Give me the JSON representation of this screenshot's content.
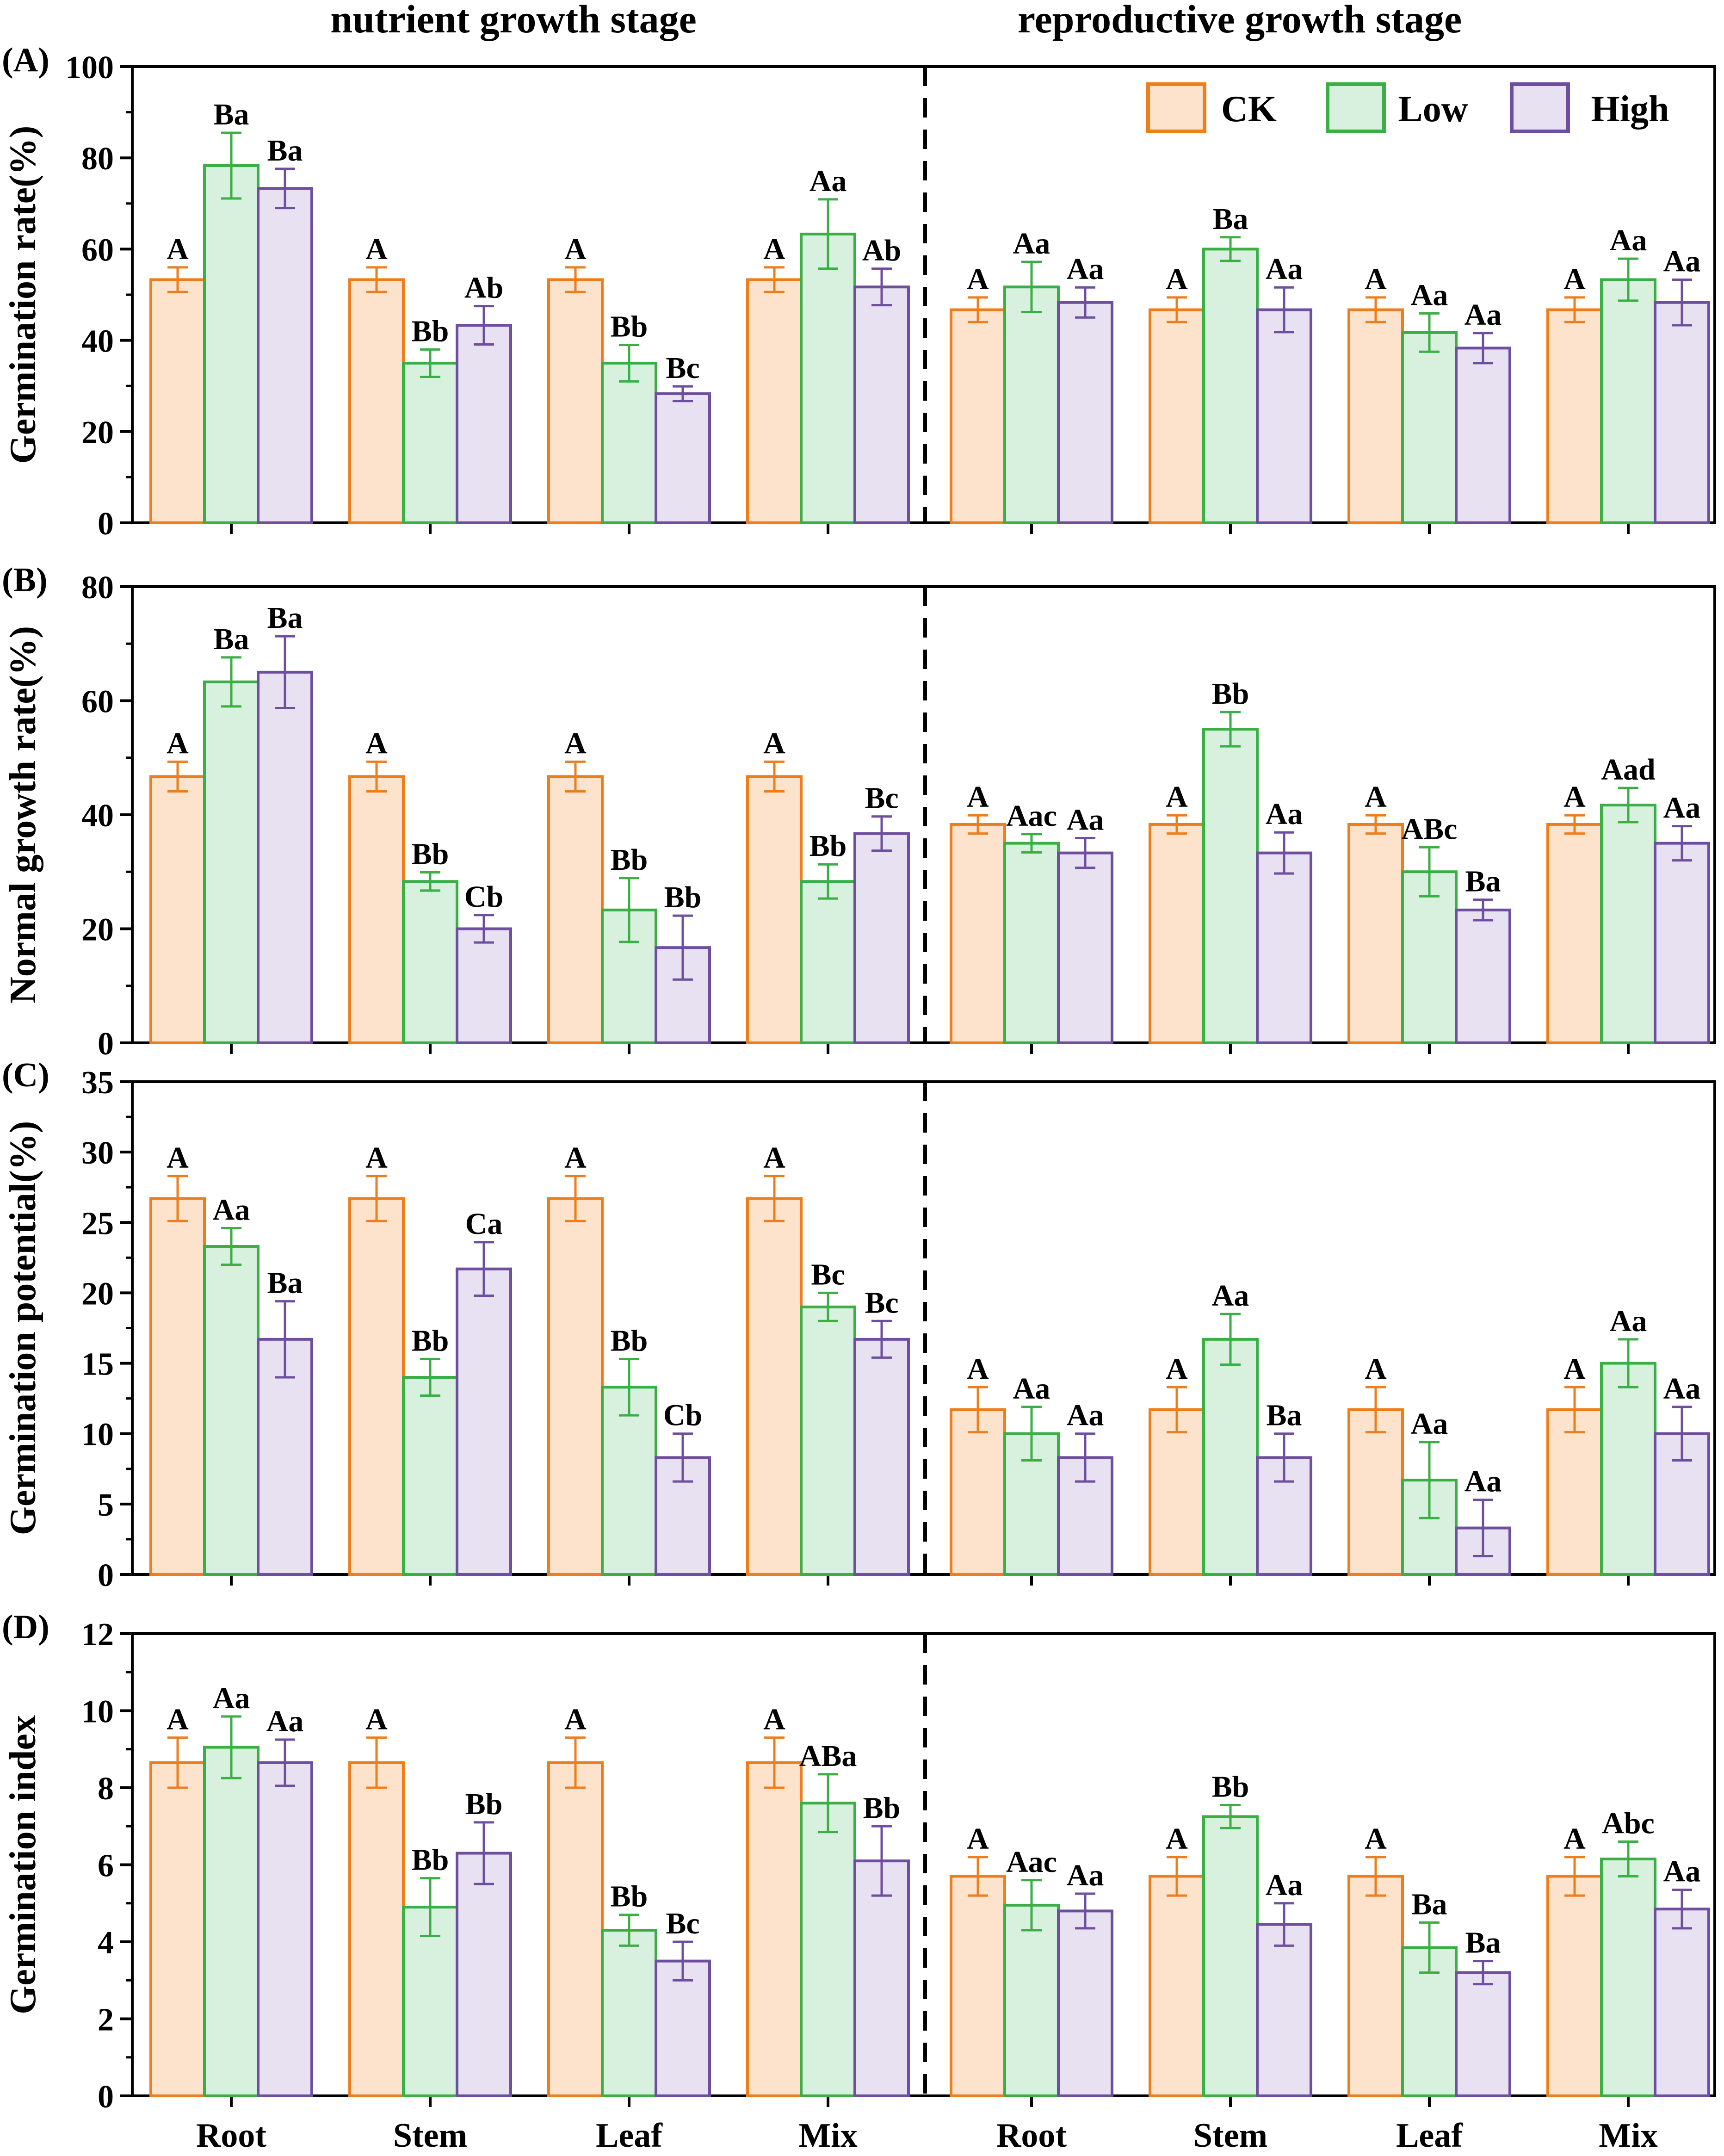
{
  "colors": {
    "ck_fill": "#fde3cc",
    "ck_stroke": "#ee7d1c",
    "low_fill": "#d8f0de",
    "low_stroke": "#3cae46",
    "high_fill": "#e7e1f2",
    "high_stroke": "#6e4e9e"
  },
  "stage_titles": {
    "left": "nutrient growth stage",
    "right": "reproductive growth stage"
  },
  "legend": [
    "CK",
    "Low",
    "High"
  ],
  "categories": [
    "Root",
    "Stem",
    "Leaf",
    "Mix",
    "Root",
    "Stem",
    "Leaf",
    "Mix"
  ],
  "chart_data": [
    {
      "type": "bar",
      "panel_label": "(A)",
      "ylabel": "Germination rate(%)",
      "ylim": [
        0,
        100
      ],
      "yticks": [
        0,
        20,
        40,
        60,
        80,
        100
      ],
      "categories": [
        "Root",
        "Stem",
        "Leaf",
        "Mix",
        "Root",
        "Stem",
        "Leaf",
        "Mix"
      ],
      "series": [
        {
          "name": "CK",
          "values": [
            53.3,
            53.3,
            53.3,
            53.3,
            46.7,
            46.7,
            46.7,
            46.7
          ],
          "errors": [
            2.7,
            2.7,
            2.7,
            2.7,
            2.7,
            2.7,
            2.7,
            2.7
          ],
          "labels": [
            "A",
            "A",
            "A",
            "A",
            "A",
            "A",
            "A",
            "A"
          ]
        },
        {
          "name": "Low",
          "values": [
            78.3,
            35.0,
            35.0,
            63.3,
            51.7,
            60.0,
            41.7,
            53.3
          ],
          "errors": [
            7.2,
            3.0,
            4.0,
            7.6,
            5.5,
            2.6,
            4.2,
            4.6
          ],
          "labels": [
            "Ba",
            "Bb",
            "Bb",
            "Aa",
            "Aa",
            "Ba",
            "Aa",
            "Aa"
          ]
        },
        {
          "name": "High",
          "values": [
            73.3,
            43.3,
            28.3,
            51.7,
            48.3,
            46.7,
            38.3,
            48.3
          ],
          "errors": [
            4.3,
            4.2,
            1.6,
            4.0,
            3.3,
            4.9,
            3.3,
            5.0
          ],
          "labels": [
            "Ba",
            "Ab",
            "Bc",
            "Ab",
            "Aa",
            "Aa",
            "Aa",
            "Aa"
          ]
        }
      ]
    },
    {
      "type": "bar",
      "panel_label": "(B)",
      "ylabel": "Normal growth rate(%)",
      "ylim": [
        0,
        80
      ],
      "yticks": [
        0,
        20,
        40,
        60,
        80
      ],
      "categories": [
        "Root",
        "Stem",
        "Leaf",
        "Mix",
        "Root",
        "Stem",
        "Leaf",
        "Mix"
      ],
      "series": [
        {
          "name": "CK",
          "values": [
            46.7,
            46.7,
            46.7,
            46.7,
            38.3,
            38.3,
            38.3,
            38.3
          ],
          "errors": [
            2.6,
            2.6,
            2.6,
            2.6,
            1.6,
            1.6,
            1.6,
            1.6
          ],
          "labels": [
            "A",
            "A",
            "A",
            "A",
            "A",
            "A",
            "A",
            "A"
          ]
        },
        {
          "name": "Low",
          "values": [
            63.3,
            28.3,
            23.3,
            28.3,
            35.0,
            55.0,
            30.0,
            41.7
          ],
          "errors": [
            4.3,
            1.6,
            5.6,
            3.0,
            1.6,
            3.0,
            4.3,
            3.0
          ],
          "labels": [
            "Ba",
            "Bb",
            "Bb",
            "Bb",
            "Aac",
            "Bb",
            "ABc",
            "Aad"
          ]
        },
        {
          "name": "High",
          "values": [
            65.0,
            20.0,
            16.7,
            36.7,
            33.3,
            33.3,
            23.3,
            35.0
          ],
          "errors": [
            6.3,
            2.4,
            5.6,
            3.0,
            2.6,
            3.6,
            1.8,
            3.0
          ],
          "labels": [
            "Ba",
            "Cb",
            "Bb",
            "Bc",
            "Aa",
            "Aa",
            "Ba",
            "Aa"
          ]
        }
      ]
    },
    {
      "type": "bar",
      "panel_label": "(C)",
      "ylabel": "Germination potential(%)",
      "ylim": [
        0,
        35
      ],
      "yticks": [
        0,
        5,
        10,
        15,
        20,
        25,
        30,
        35
      ],
      "categories": [
        "Root",
        "Stem",
        "Leaf",
        "Mix",
        "Root",
        "Stem",
        "Leaf",
        "Mix"
      ],
      "series": [
        {
          "name": "CK",
          "values": [
            26.7,
            26.7,
            26.7,
            26.7,
            11.7,
            11.7,
            11.7,
            11.7
          ],
          "errors": [
            1.6,
            1.6,
            1.6,
            1.6,
            1.6,
            1.6,
            1.6,
            1.6
          ],
          "labels": [
            "A",
            "A",
            "A",
            "A",
            "A",
            "A",
            "A",
            "A"
          ]
        },
        {
          "name": "Low",
          "values": [
            23.3,
            14.0,
            13.3,
            19.0,
            10.0,
            16.7,
            6.7,
            15.0
          ],
          "errors": [
            1.3,
            1.3,
            2.0,
            1.0,
            1.9,
            1.8,
            2.7,
            1.7
          ],
          "labels": [
            "Aa",
            "Bb",
            "Bb",
            "Bc",
            "Aa",
            "Aa",
            "Aa",
            "Aa"
          ]
        },
        {
          "name": "High",
          "values": [
            16.7,
            21.7,
            8.3,
            16.7,
            8.3,
            8.3,
            3.3,
            10.0
          ],
          "errors": [
            2.7,
            1.9,
            1.7,
            1.3,
            1.7,
            1.7,
            2.0,
            1.9
          ],
          "labels": [
            "Ba",
            "Ca",
            "Cb",
            "Bc",
            "Aa",
            "Ba",
            "Aa",
            "Aa"
          ]
        }
      ]
    },
    {
      "type": "bar",
      "panel_label": "(D)",
      "ylabel": "Germination index",
      "ylim": [
        0,
        12
      ],
      "yticks": [
        0,
        2,
        4,
        6,
        8,
        10,
        12
      ],
      "categories": [
        "Root",
        "Stem",
        "Leaf",
        "Mix",
        "Root",
        "Stem",
        "Leaf",
        "Mix"
      ],
      "series": [
        {
          "name": "CK",
          "values": [
            8.65,
            8.65,
            8.65,
            8.65,
            5.7,
            5.7,
            5.7,
            5.7
          ],
          "errors": [
            0.65,
            0.65,
            0.65,
            0.65,
            0.5,
            0.5,
            0.5,
            0.5
          ],
          "labels": [
            "A",
            "A",
            "A",
            "A",
            "A",
            "A",
            "A",
            "A"
          ]
        },
        {
          "name": "Low",
          "values": [
            9.05,
            4.9,
            4.3,
            7.6,
            4.95,
            7.25,
            3.85,
            6.15
          ],
          "errors": [
            0.8,
            0.75,
            0.4,
            0.75,
            0.65,
            0.3,
            0.65,
            0.45
          ],
          "labels": [
            "Aa",
            "Bb",
            "Bb",
            "ABa",
            "Aac",
            "Bb",
            "Ba",
            "Abc"
          ]
        },
        {
          "name": "High",
          "values": [
            8.65,
            6.3,
            3.5,
            6.1,
            4.8,
            4.45,
            3.2,
            4.85
          ],
          "errors": [
            0.6,
            0.8,
            0.5,
            0.9,
            0.45,
            0.55,
            0.3,
            0.5
          ],
          "labels": [
            "Aa",
            "Bb",
            "Bc",
            "Bb",
            "Aa",
            "Aa",
            "Ba",
            "Aa"
          ]
        }
      ]
    }
  ]
}
